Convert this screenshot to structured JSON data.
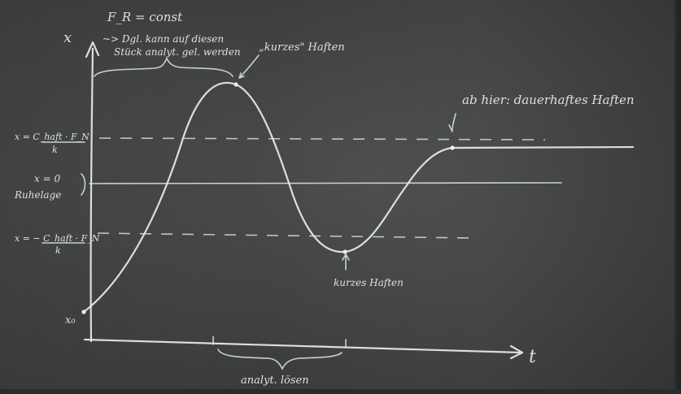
{
  "board": {
    "top_note_line1": "F_R = const",
    "top_note_line2": "~> Dgl. kann auf diesen",
    "top_note_line3": "Stück analyt. gel. werden",
    "peak_note": "„kurzes\" Haften",
    "right_note": "ab hier: dauerhaftes Haften",
    "trough_note": "kurzes Haften",
    "bottom_note": "analyt. lösen",
    "x_axis_label": "t",
    "y_axis_label": "x",
    "upper_level_label_a": "x = C_haft · F_N",
    "upper_level_label_b": "k",
    "zero_level_label_a": "x = 0",
    "zero_level_label_b": "Ruhelage",
    "lower_level_label_a": "x = − C_haft · F_N",
    "lower_level_label_b": "k",
    "start_label": "x₀"
  },
  "colors": {
    "board": "#45474a",
    "chalk": "#e9ecec"
  }
}
